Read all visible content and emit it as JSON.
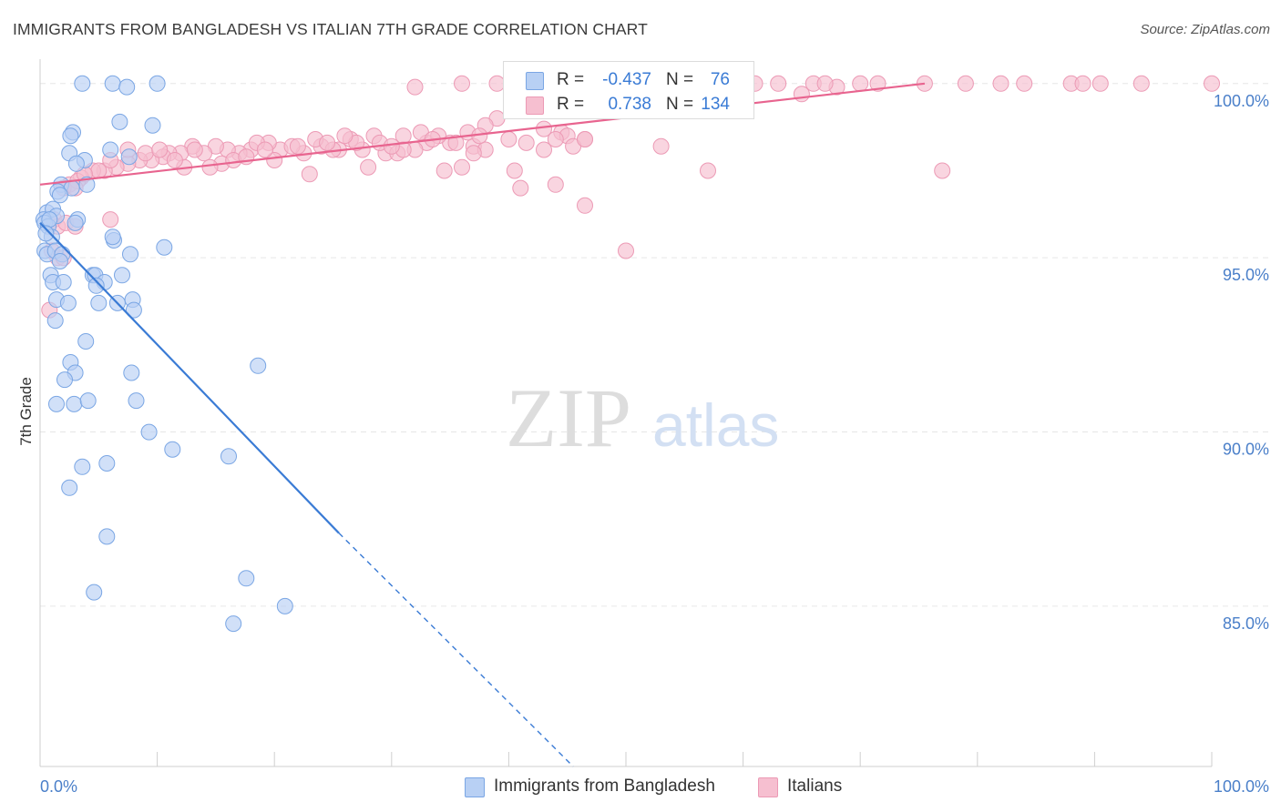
{
  "title": "IMMIGRANTS FROM BANGLADESH VS ITALIAN 7TH GRADE CORRELATION CHART",
  "source": "Source: ZipAtlas.com",
  "watermark": {
    "zip": "ZIP",
    "atlas": "atlas"
  },
  "colors": {
    "blue_fill": "#b8d0f4",
    "blue_stroke": "#7aa6e4",
    "blue_line": "#3a7bd5",
    "pink_fill": "#f6bfd0",
    "pink_stroke": "#ec9ab5",
    "pink_line": "#e8648f",
    "tick_text": "#4a7fc9",
    "grid": "#e6e6e6"
  },
  "legend_top": {
    "rows": [
      {
        "r_label": "R =",
        "r_value": "-0.437",
        "n_label": "N =",
        "n_value": "76",
        "color": "blue"
      },
      {
        "r_label": "R =",
        "r_value": "0.738",
        "n_label": "N =",
        "n_value": "134",
        "color": "pink"
      }
    ]
  },
  "legend_bottom": [
    {
      "label": "Immigrants from Bangladesh",
      "color": "blue"
    },
    {
      "label": "Italians",
      "color": "pink"
    }
  ],
  "chart_data": {
    "type": "scatter",
    "title": "IMMIGRANTS FROM BANGLADESH VS ITALIAN 7TH GRADE CORRELATION CHART",
    "xlabel": "",
    "ylabel": "7th Grade",
    "xlim": [
      0,
      100
    ],
    "ylim": [
      80.4,
      100.7
    ],
    "x_ticks": [
      "0.0%",
      "100.0%"
    ],
    "y_ticks": [
      {
        "value": 100,
        "label": "100.0%"
      },
      {
        "value": 95,
        "label": "95.0%"
      },
      {
        "value": 90,
        "label": "90.0%"
      },
      {
        "value": 85,
        "label": "85.0%"
      }
    ],
    "grid": true,
    "series": [
      {
        "name": "Immigrants from Bangladesh",
        "color": "blue",
        "R": -0.437,
        "N": 76,
        "trend": {
          "x0": 0,
          "y0": 96.0,
          "x1": 25.5,
          "y1": 87.1,
          "dash_to_x": 45.5,
          "dash_to_y": 80.4
        },
        "points": [
          [
            3.6,
            100
          ],
          [
            6.2,
            100
          ],
          [
            7.4,
            99.9
          ],
          [
            10.0,
            100
          ],
          [
            2.8,
            98.6
          ],
          [
            2.6,
            98.5
          ],
          [
            6.8,
            98.9
          ],
          [
            9.6,
            98.8
          ],
          [
            2.5,
            98.0
          ],
          [
            3.8,
            97.8
          ],
          [
            6.0,
            98.1
          ],
          [
            7.6,
            97.9
          ],
          [
            3.1,
            97.7
          ],
          [
            1.8,
            97.1
          ],
          [
            2.7,
            97.0
          ],
          [
            1.5,
            96.9
          ],
          [
            1.7,
            96.8
          ],
          [
            4.0,
            97.1
          ],
          [
            0.6,
            96.3
          ],
          [
            1.1,
            96.4
          ],
          [
            1.4,
            96.2
          ],
          [
            0.3,
            96.1
          ],
          [
            0.4,
            96.0
          ],
          [
            0.7,
            95.9
          ],
          [
            0.8,
            96.1
          ],
          [
            3.2,
            96.1
          ],
          [
            3.0,
            96.0
          ],
          [
            1.0,
            95.6
          ],
          [
            0.5,
            95.7
          ],
          [
            0.4,
            95.2
          ],
          [
            0.6,
            95.1
          ],
          [
            1.3,
            95.2
          ],
          [
            1.9,
            95.1
          ],
          [
            1.7,
            94.9
          ],
          [
            6.3,
            95.5
          ],
          [
            6.2,
            95.6
          ],
          [
            7.7,
            95.1
          ],
          [
            10.6,
            95.3
          ],
          [
            0.9,
            94.5
          ],
          [
            1.1,
            94.3
          ],
          [
            2.0,
            94.3
          ],
          [
            4.5,
            94.5
          ],
          [
            4.7,
            94.5
          ],
          [
            5.5,
            94.3
          ],
          [
            4.8,
            94.2
          ],
          [
            7.0,
            94.5
          ],
          [
            1.4,
            93.8
          ],
          [
            2.4,
            93.7
          ],
          [
            5.0,
            93.7
          ],
          [
            6.6,
            93.7
          ],
          [
            7.9,
            93.8
          ],
          [
            8.0,
            93.5
          ],
          [
            1.3,
            93.2
          ],
          [
            3.9,
            92.6
          ],
          [
            2.6,
            92.0
          ],
          [
            3.0,
            91.7
          ],
          [
            2.1,
            91.5
          ],
          [
            7.8,
            91.7
          ],
          [
            18.6,
            91.9
          ],
          [
            1.4,
            90.8
          ],
          [
            2.9,
            90.8
          ],
          [
            4.1,
            90.9
          ],
          [
            8.2,
            90.9
          ],
          [
            9.3,
            90.0
          ],
          [
            11.3,
            89.5
          ],
          [
            16.1,
            89.3
          ],
          [
            3.6,
            89.0
          ],
          [
            5.7,
            89.1
          ],
          [
            2.5,
            88.4
          ],
          [
            5.7,
            87.0
          ],
          [
            4.6,
            85.4
          ],
          [
            17.6,
            85.8
          ],
          [
            20.9,
            85.0
          ],
          [
            16.5,
            84.5
          ]
        ]
      },
      {
        "name": "Italians",
        "color": "pink",
        "R": 0.738,
        "N": 134,
        "trend": {
          "x0": 0,
          "y0": 97.1,
          "x1": 75.5,
          "y1": 100.0
        },
        "points": [
          [
            32,
            99.9
          ],
          [
            36,
            100
          ],
          [
            39,
            100
          ],
          [
            43,
            100
          ],
          [
            46,
            100
          ],
          [
            48.5,
            100
          ],
          [
            50,
            100
          ],
          [
            52,
            100
          ],
          [
            55,
            100
          ],
          [
            56.5,
            99.9
          ],
          [
            57.5,
            100
          ],
          [
            60,
            100
          ],
          [
            61,
            100
          ],
          [
            63,
            100
          ],
          [
            66,
            100
          ],
          [
            68,
            99.9
          ],
          [
            70,
            100
          ],
          [
            71.5,
            100
          ],
          [
            75.5,
            100
          ],
          [
            79,
            100
          ],
          [
            82,
            100
          ],
          [
            84,
            100
          ],
          [
            88,
            100
          ],
          [
            89,
            100
          ],
          [
            90.5,
            100
          ],
          [
            94,
            100
          ],
          [
            100,
            100
          ],
          [
            65,
            99.7
          ],
          [
            58,
            99.6
          ],
          [
            67,
            100
          ],
          [
            39,
            99.0
          ],
          [
            38,
            98.8
          ],
          [
            43,
            98.7
          ],
          [
            44.5,
            98.6
          ],
          [
            45,
            98.5
          ],
          [
            46.5,
            98.4
          ],
          [
            31,
            98.5
          ],
          [
            33,
            98.3
          ],
          [
            35,
            98.3
          ],
          [
            37,
            98.2
          ],
          [
            38,
            98.1
          ],
          [
            40,
            98.4
          ],
          [
            41.5,
            98.3
          ],
          [
            43,
            98.1
          ],
          [
            44,
            98.4
          ],
          [
            45.5,
            98.2
          ],
          [
            36.5,
            98.6
          ],
          [
            34,
            98.5
          ],
          [
            32,
            98.1
          ],
          [
            29.5,
            98.0
          ],
          [
            27.5,
            98.1
          ],
          [
            25.5,
            98.1
          ],
          [
            24,
            98.2
          ],
          [
            22.5,
            98.0
          ],
          [
            20.5,
            98.1
          ],
          [
            19.5,
            98.3
          ],
          [
            18,
            98.1
          ],
          [
            17,
            98.0
          ],
          [
            16,
            98.1
          ],
          [
            15,
            98.2
          ],
          [
            14,
            98.0
          ],
          [
            13,
            98.2
          ],
          [
            12,
            98.0
          ],
          [
            11,
            98.0
          ],
          [
            10.5,
            97.9
          ],
          [
            9.5,
            97.8
          ],
          [
            8.5,
            97.8
          ],
          [
            7.5,
            97.7
          ],
          [
            6.5,
            97.6
          ],
          [
            5.5,
            97.5
          ],
          [
            4.5,
            97.5
          ],
          [
            3.5,
            97.3
          ],
          [
            2.5,
            97.1
          ],
          [
            2.0,
            97.0
          ],
          [
            3.2,
            97.2
          ],
          [
            26.5,
            98.4
          ],
          [
            28.5,
            98.5
          ],
          [
            30.5,
            98.0
          ],
          [
            18.5,
            98.3
          ],
          [
            21.5,
            98.2
          ],
          [
            23.5,
            98.4
          ],
          [
            25,
            98.1
          ],
          [
            15.5,
            97.7
          ],
          [
            14.5,
            97.6
          ],
          [
            16.5,
            97.8
          ],
          [
            20,
            97.8
          ],
          [
            22,
            98.2
          ],
          [
            28,
            97.6
          ],
          [
            23,
            97.4
          ],
          [
            34.5,
            97.5
          ],
          [
            36,
            97.6
          ],
          [
            31,
            98.1
          ],
          [
            29,
            98.3
          ],
          [
            27,
            98.3
          ],
          [
            32.5,
            98.6
          ],
          [
            37.5,
            98.5
          ],
          [
            46.5,
            98.4
          ],
          [
            53,
            98.2
          ],
          [
            57,
            97.5
          ],
          [
            40.5,
            97.5
          ],
          [
            41,
            97.0
          ],
          [
            44,
            97.1
          ],
          [
            46.5,
            96.5
          ],
          [
            50,
            95.2
          ],
          [
            77,
            97.5
          ],
          [
            12.3,
            97.6
          ],
          [
            11.5,
            97.8
          ],
          [
            9.0,
            98.0
          ],
          [
            7.5,
            98.1
          ],
          [
            6,
            97.8
          ],
          [
            5,
            97.5
          ],
          [
            3.8,
            97.4
          ],
          [
            3.0,
            97.0
          ],
          [
            1.2,
            96.1
          ],
          [
            1.5,
            95.9
          ],
          [
            2.2,
            96.0
          ],
          [
            3.0,
            95.9
          ],
          [
            6,
            96.1
          ],
          [
            1.0,
            95.2
          ],
          [
            1.5,
            95.0
          ],
          [
            2.0,
            95.0
          ],
          [
            0.8,
            93.5
          ],
          [
            13.2,
            98.1
          ],
          [
            10.2,
            98.1
          ],
          [
            17.6,
            97.9
          ],
          [
            19.2,
            98.1
          ],
          [
            24.5,
            98.3
          ],
          [
            26,
            98.5
          ],
          [
            30,
            98.2
          ],
          [
            33.5,
            98.4
          ],
          [
            35.5,
            98.3
          ],
          [
            37,
            98.0
          ]
        ]
      }
    ]
  }
}
